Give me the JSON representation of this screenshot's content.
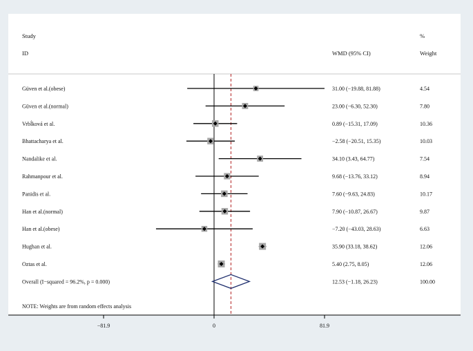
{
  "chart_data": {
    "type": "forest",
    "header": {
      "study_line1": "Study",
      "study_line2": "ID",
      "effect_label": "WMD (95% CI)",
      "weight_line1": "%",
      "weight_line2": "Weight"
    },
    "studies": [
      {
        "name": "Güven et al.(obese)",
        "est": 31.0,
        "lo": -19.88,
        "hi": 81.88,
        "ci_text": "31.00 (−19.88, 81.88)",
        "weight": "4.54"
      },
      {
        "name": "Güven et al.(normal)",
        "est": 23.0,
        "lo": -6.3,
        "hi": 52.3,
        "ci_text": "23.00 (−6.30, 52.30)",
        "weight": "7.80"
      },
      {
        "name": "Vrbĺková et al.",
        "est": 0.89,
        "lo": -15.31,
        "hi": 17.09,
        "ci_text": "0.89 (−15.31, 17.09)",
        "weight": "10.36"
      },
      {
        "name": "Bhattacharya et al.",
        "est": -2.58,
        "lo": -20.51,
        "hi": 15.35,
        "ci_text": "−2.58 (−20.51, 15.35)",
        "weight": "10.03"
      },
      {
        "name": "Nandalike et al.",
        "est": 34.1,
        "lo": 3.43,
        "hi": 64.77,
        "ci_text": "34.10 (3.43, 64.77)",
        "weight": "7.54"
      },
      {
        "name": "Rahmanpour et al.",
        "est": 9.68,
        "lo": -13.76,
        "hi": 33.12,
        "ci_text": "9.68 (−13.76, 33.12)",
        "weight": "8.94"
      },
      {
        "name": "Panidis et al.",
        "est": 7.6,
        "lo": -9.63,
        "hi": 24.83,
        "ci_text": "7.60 (−9.63, 24.83)",
        "weight": "10.17"
      },
      {
        "name": "Han et al.(normal)",
        "est": 7.9,
        "lo": -10.87,
        "hi": 26.67,
        "ci_text": "7.90 (−10.87, 26.67)",
        "weight": "9.87"
      },
      {
        "name": "Han et al.(obese)",
        "est": -7.2,
        "lo": -43.03,
        "hi": 28.63,
        "ci_text": "−7.20 (−43.03, 28.63)",
        "weight": "6.63"
      },
      {
        "name": "Hughan et al.",
        "est": 35.9,
        "lo": 33.18,
        "hi": 38.62,
        "ci_text": "35.90 (33.18, 38.62)",
        "weight": "12.06"
      },
      {
        "name": "Oztas et al.",
        "est": 5.4,
        "lo": 2.75,
        "hi": 8.05,
        "ci_text": "5.40 (2.75, 8.05)",
        "weight": "12.06"
      }
    ],
    "overall": {
      "label": "Overall  (I−squared = 96.2%, p = 0.000)",
      "est": 12.53,
      "lo": -1.18,
      "hi": 26.23,
      "ci_text": "12.53 (−1.18, 26.23)",
      "weight": "100.00"
    },
    "note": "NOTE: Weights are from random effects analysis",
    "x_ticks": [
      {
        "value": -81.9,
        "label": "−81.9"
      },
      {
        "value": 0,
        "label": "0"
      },
      {
        "value": 81.9,
        "label": "81.9"
      }
    ],
    "xlim": [
      -81.9,
      81.9
    ],
    "null_line": 0,
    "colors": {
      "background": "#e9eef2",
      "panel": "#ffffff",
      "box": "#a8a8a8",
      "line": "#000000",
      "pooled_line": "#b22222",
      "diamond": "#1f2f6e"
    }
  }
}
